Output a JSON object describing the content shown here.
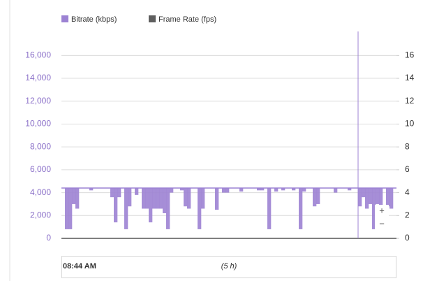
{
  "chart_data": {
    "type": "band",
    "series": [
      {
        "name": "Bitrate (kbps)",
        "color": "#9c82d3",
        "axis": "y",
        "upper": 4400,
        "values": [
          4400,
          800,
          800,
          3000,
          2600,
          4400,
          4400,
          4400,
          4200,
          4400,
          4400,
          4400,
          4400,
          4400,
          3600,
          1400,
          3600,
          4400,
          800,
          2800,
          4400,
          3800,
          4400,
          2600,
          2600,
          1400,
          2600,
          2600,
          2600,
          2200,
          800,
          4000,
          4400,
          4400,
          4200,
          2800,
          2600,
          4400,
          4400,
          800,
          2600,
          4400,
          4400,
          4400,
          2500,
          4400,
          4000,
          4000,
          4400,
          4400,
          4400,
          4100,
          4400,
          4400,
          4400,
          4400,
          4200,
          4200,
          4400,
          800,
          4400,
          4100,
          4400,
          4200,
          4400,
          4400,
          4200,
          4400,
          800,
          4100,
          4400,
          4400,
          2800,
          3000,
          4400,
          4400,
          4400,
          4400,
          4000,
          4400,
          4400,
          4400,
          4200,
          4400,
          4400,
          2800,
          3600,
          2600,
          3000,
          800,
          3000,
          1200,
          4400,
          2800,
          2600,
          4400
        ]
      },
      {
        "name": "Frame Rate (fps)",
        "color": "#5f5f5f",
        "axis": "y2",
        "values": []
      }
    ],
    "ylim": [
      0,
      17000
    ],
    "yticks": [
      0,
      {
        "value": 2000,
        "label": "2,000"
      },
      {
        "value": 4000,
        "label": "4,000"
      },
      {
        "value": 6000,
        "label": "6,000"
      },
      {
        "value": 8000,
        "label": "8,000"
      },
      {
        "value": 10000,
        "label": "10,000"
      },
      {
        "value": 12000,
        "label": "12,000"
      },
      {
        "value": 14000,
        "label": "14,000"
      },
      {
        "value": 16000,
        "label": "16,000"
      }
    ],
    "y2lim": [
      0,
      17
    ],
    "y2ticks": [
      0,
      2,
      4,
      6,
      8,
      10,
      12,
      14,
      16
    ],
    "grid": true,
    "navigator_start": "08:44 AM",
    "navigator_span": "(5 h)",
    "zoom_in": "+",
    "zoom_out": "−"
  }
}
